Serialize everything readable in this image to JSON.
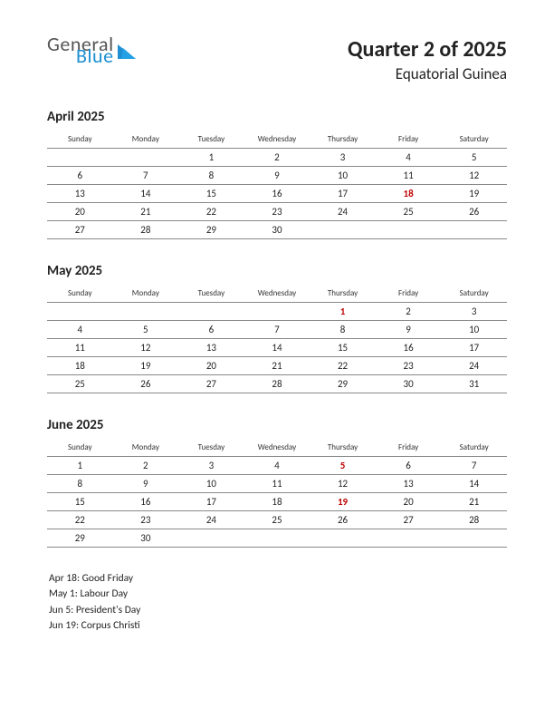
{
  "logo": {
    "general": "General",
    "blue": "Blue",
    "tri_color": "#1d8fd2"
  },
  "header": {
    "title": "Quarter 2 of 2025",
    "subtitle": "Equatorial Guinea"
  },
  "weekdays": [
    "Sunday",
    "Monday",
    "Tuesday",
    "Wednesday",
    "Thursday",
    "Friday",
    "Saturday"
  ],
  "months": [
    {
      "title": "April 2025",
      "rows": [
        [
          "",
          "",
          "1",
          "2",
          "3",
          "4",
          "5"
        ],
        [
          "6",
          "7",
          "8",
          "9",
          "10",
          "11",
          "12"
        ],
        [
          "13",
          "14",
          "15",
          "16",
          "17",
          "18",
          "19"
        ],
        [
          "20",
          "21",
          "22",
          "23",
          "24",
          "25",
          "26"
        ],
        [
          "27",
          "28",
          "29",
          "30",
          "",
          "",
          ""
        ]
      ],
      "holidays": [
        [
          2,
          5
        ]
      ]
    },
    {
      "title": "May 2025",
      "rows": [
        [
          "",
          "",
          "",
          "",
          "1",
          "2",
          "3"
        ],
        [
          "4",
          "5",
          "6",
          "7",
          "8",
          "9",
          "10"
        ],
        [
          "11",
          "12",
          "13",
          "14",
          "15",
          "16",
          "17"
        ],
        [
          "18",
          "19",
          "20",
          "21",
          "22",
          "23",
          "24"
        ],
        [
          "25",
          "26",
          "27",
          "28",
          "29",
          "30",
          "31"
        ]
      ],
      "holidays": [
        [
          0,
          4
        ]
      ]
    },
    {
      "title": "June 2025",
      "rows": [
        [
          "1",
          "2",
          "3",
          "4",
          "5",
          "6",
          "7"
        ],
        [
          "8",
          "9",
          "10",
          "11",
          "12",
          "13",
          "14"
        ],
        [
          "15",
          "16",
          "17",
          "18",
          "19",
          "20",
          "21"
        ],
        [
          "22",
          "23",
          "24",
          "25",
          "26",
          "27",
          "28"
        ],
        [
          "29",
          "30",
          "",
          "",
          "",
          "",
          ""
        ]
      ],
      "holidays": [
        [
          0,
          4
        ],
        [
          2,
          4
        ]
      ]
    }
  ],
  "holiday_list": [
    "Apr 18: Good Friday",
    "May 1: Labour Day",
    "Jun 5: President's Day",
    "Jun 19: Corpus Christi"
  ],
  "colors": {
    "holiday_text": "#c00000",
    "border": "#888888",
    "text": "#222222",
    "background": "#ffffff"
  }
}
